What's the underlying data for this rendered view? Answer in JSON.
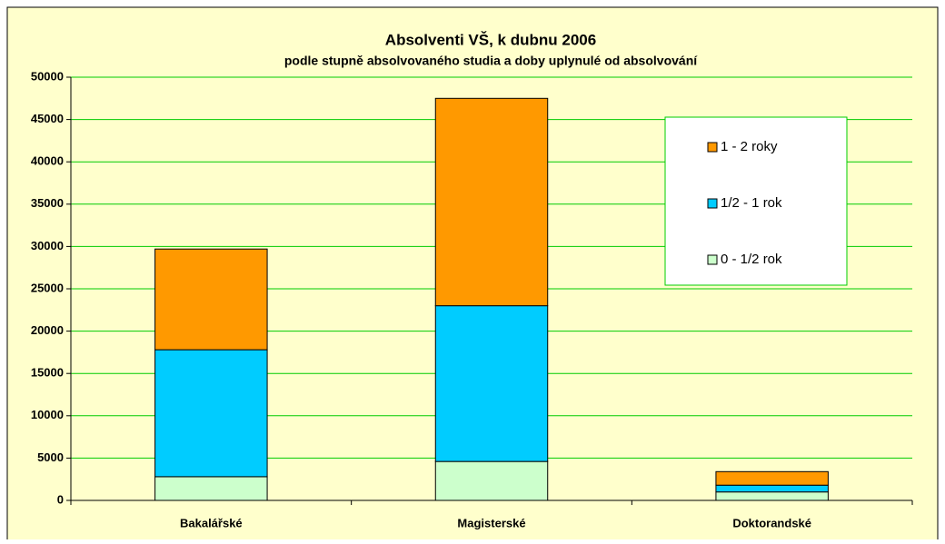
{
  "chart_data": {
    "type": "stacked_bar",
    "title": "Absolventi VŠ, k dubnu 2006",
    "subtitle": "podle stupně absolvovaného studia a doby uplynulé od absolvování",
    "categories": [
      "Bakalářské",
      "Magisterské",
      "Doktorandské"
    ],
    "series": [
      {
        "name": "0 - 1/2 rok",
        "color": "#ccffcc",
        "values": [
          2800,
          4600,
          1000
        ]
      },
      {
        "name": "1/2 - 1 rok",
        "color": "#00ccff",
        "values": [
          15000,
          18400,
          800
        ]
      },
      {
        "name": "1 - 2 roky",
        "color": "#ff9900",
        "values": [
          11900,
          24500,
          1600
        ]
      }
    ],
    "ylim": [
      0,
      50000
    ],
    "yticks": [
      0,
      5000,
      10000,
      15000,
      20000,
      25000,
      30000,
      35000,
      40000,
      45000,
      50000
    ],
    "grid": true,
    "legend": "right"
  }
}
